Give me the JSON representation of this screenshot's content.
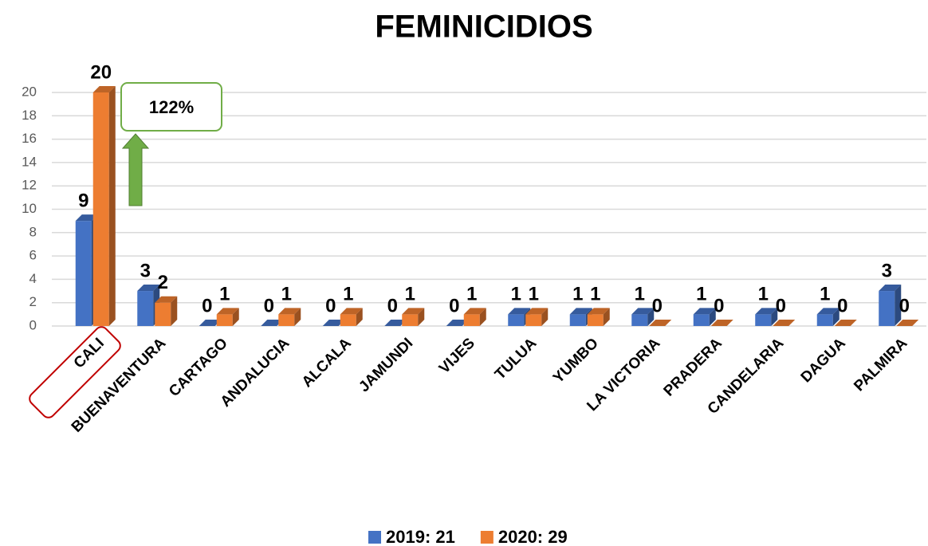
{
  "chart_data": {
    "type": "bar",
    "title": "FEMINICIDIOS",
    "categories": [
      "CALI",
      "BUENAVENTURA",
      "CARTAGO",
      "ANDALUCIA",
      "ALCALA",
      "JAMUNDI",
      "VIJES",
      "TULUA",
      "YUMBO",
      "LA VICTORIA",
      "PRADERA",
      "CANDELARIA",
      "DAGUA",
      "PALMIRA"
    ],
    "series": [
      {
        "name": "2019: 21",
        "color": "#4472c4",
        "values": [
          9,
          3,
          0,
          0,
          0,
          0,
          0,
          1,
          1,
          1,
          1,
          1,
          1,
          3
        ]
      },
      {
        "name": "2020: 29",
        "color": "#ed7d31",
        "values": [
          20,
          2,
          1,
          1,
          1,
          1,
          1,
          1,
          1,
          0,
          0,
          0,
          0,
          0
        ]
      }
    ],
    "ylim": [
      0,
      20
    ],
    "yticks": [
      0,
      2,
      4,
      6,
      8,
      10,
      12,
      14,
      16,
      18,
      20
    ],
    "grid": true,
    "annotations": [
      "122%"
    ],
    "legend": "bottom"
  }
}
